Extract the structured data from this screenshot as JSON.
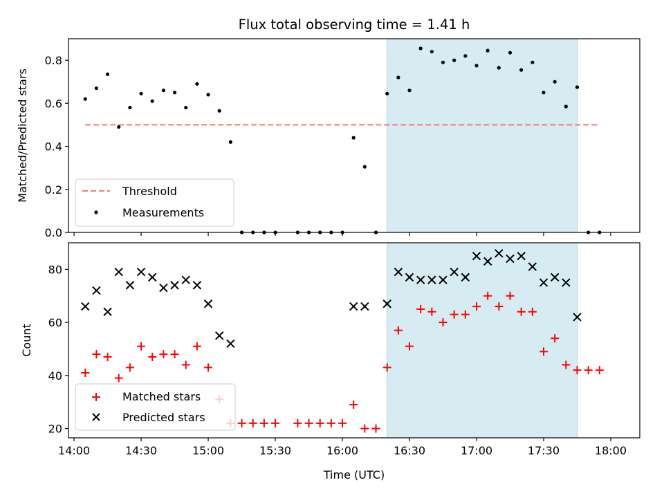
{
  "title": "Flux total observing time = 1.41 h",
  "chart_data": [
    {
      "type": "scatter",
      "ylabel": "Matched/Predicted stars",
      "ylim": [
        0,
        0.9
      ],
      "yticks": [
        0.0,
        0.2,
        0.4,
        0.6,
        0.8
      ],
      "ytick_labels": [
        "0.0",
        "0.2",
        "0.4",
        "0.6",
        "0.8"
      ],
      "xlim": [
        "14:00",
        "18:00"
      ],
      "highlight_span": [
        "16:20",
        "17:45"
      ],
      "highlight_color": "#add8e6",
      "legend_position": "lower-left",
      "threshold": {
        "name": "Threshold",
        "value": 0.5,
        "x_range": [
          "14:05",
          "17:55"
        ],
        "color": "#f08080"
      },
      "series": [
        {
          "name": "Measurements",
          "marker": "dot",
          "color": "#000000",
          "x": [
            "14:05",
            "14:10",
            "14:15",
            "14:20",
            "14:25",
            "14:30",
            "14:35",
            "14:40",
            "14:45",
            "14:50",
            "14:55",
            "15:00",
            "15:05",
            "15:10",
            "15:15",
            "15:20",
            "15:25",
            "15:30",
            "15:40",
            "15:45",
            "15:50",
            "15:55",
            "16:00",
            "16:05",
            "16:10",
            "16:15",
            "16:20",
            "16:25",
            "16:30",
            "16:35",
            "16:40",
            "16:45",
            "16:50",
            "16:55",
            "17:00",
            "17:05",
            "17:10",
            "17:15",
            "17:20",
            "17:25",
            "17:30",
            "17:35",
            "17:40",
            "17:45",
            "17:50",
            "17:55"
          ],
          "values": [
            0.62,
            0.67,
            0.735,
            0.49,
            0.58,
            0.645,
            0.61,
            0.66,
            0.65,
            0.58,
            0.69,
            0.64,
            0.565,
            0.42,
            0,
            0,
            0,
            0,
            0,
            0,
            0,
            0,
            0,
            0.44,
            0.305,
            0,
            0.645,
            0.72,
            0.66,
            0.855,
            0.84,
            0.79,
            0.8,
            0.82,
            0.775,
            0.845,
            0.765,
            0.835,
            0.755,
            0.79,
            0.65,
            0.7,
            0.585,
            0.675,
            0,
            0
          ]
        }
      ]
    },
    {
      "type": "scatter",
      "xlabel": "Time (UTC)",
      "ylabel": "Count",
      "ylim": [
        16.5,
        90
      ],
      "yticks": [
        20,
        40,
        60,
        80
      ],
      "ytick_labels": [
        "20",
        "40",
        "60",
        "80"
      ],
      "xticks": [
        "14:00",
        "14:30",
        "15:00",
        "15:30",
        "16:00",
        "16:30",
        "17:00",
        "17:30",
        "18:00"
      ],
      "xlim": [
        "14:00",
        "18:00"
      ],
      "highlight_span": [
        "16:20",
        "17:45"
      ],
      "highlight_color": "#add8e6",
      "legend_position": "lower-left",
      "series": [
        {
          "name": "Matched stars",
          "marker": "plus",
          "color": "#ff0000",
          "x": [
            "14:05",
            "14:10",
            "14:15",
            "14:20",
            "14:25",
            "14:30",
            "14:35",
            "14:40",
            "14:45",
            "14:50",
            "14:55",
            "15:00",
            "15:05",
            "15:10",
            "15:15",
            "15:20",
            "15:25",
            "15:30",
            "15:40",
            "15:45",
            "15:50",
            "15:55",
            "16:00",
            "16:05",
            "16:10",
            "16:15",
            "16:20",
            "16:25",
            "16:30",
            "16:35",
            "16:40",
            "16:45",
            "16:50",
            "16:55",
            "17:00",
            "17:05",
            "17:10",
            "17:15",
            "17:20",
            "17:25",
            "17:30",
            "17:35",
            "17:40",
            "17:45",
            "17:50",
            "17:55"
          ],
          "values": [
            41,
            48,
            47,
            39,
            43,
            51,
            47,
            48,
            48,
            44,
            51,
            43,
            31,
            22,
            22,
            22,
            22,
            22,
            22,
            22,
            22,
            22,
            22,
            29,
            20,
            20,
            43,
            57,
            51,
            65,
            64,
            60,
            63,
            63,
            66,
            70,
            66,
            70,
            64,
            64,
            49,
            54,
            44,
            42,
            42,
            42
          ]
        },
        {
          "name": "Predicted stars",
          "marker": "x",
          "color": "#000000",
          "x": [
            "14:05",
            "14:10",
            "14:15",
            "14:20",
            "14:25",
            "14:30",
            "14:35",
            "14:40",
            "14:45",
            "14:50",
            "14:55",
            "15:00",
            "15:05",
            "15:10",
            "16:05",
            "16:10",
            "16:20",
            "16:25",
            "16:30",
            "16:35",
            "16:40",
            "16:45",
            "16:50",
            "16:55",
            "17:00",
            "17:05",
            "17:10",
            "17:15",
            "17:20",
            "17:25",
            "17:30",
            "17:35",
            "17:40",
            "17:45"
          ],
          "values": [
            66,
            72,
            64,
            79,
            74,
            79,
            77,
            73,
            74,
            76,
            74,
            67,
            55,
            52,
            66,
            66,
            67,
            79,
            77,
            76,
            76,
            76,
            79,
            77,
            85,
            83,
            86,
            84,
            85,
            81,
            75,
            77,
            75,
            62
          ]
        }
      ]
    }
  ]
}
